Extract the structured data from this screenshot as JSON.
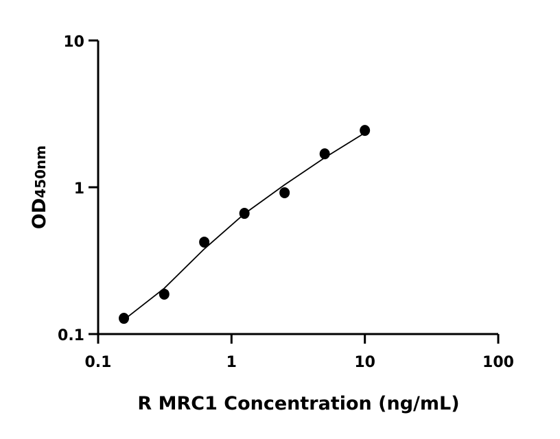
{
  "chart_data": {
    "type": "scatter",
    "title": "",
    "xlabel": "R MRC1 Concentration (ng/mL)",
    "ylabel_main": "OD",
    "ylabel_sub": "450nm",
    "x_scale": "log",
    "y_scale": "log",
    "xlim": [
      0.1,
      100
    ],
    "ylim": [
      0.1,
      10
    ],
    "x_ticks": [
      "0.1",
      "1",
      "10",
      "100"
    ],
    "y_ticks": [
      "0.1",
      "1",
      "10"
    ],
    "grid": false,
    "marker_color": "#000000",
    "series": [
      {
        "x": [
          0.156,
          0.313,
          0.625,
          1.25,
          2.5,
          5,
          10
        ],
        "y": [
          0.128,
          0.187,
          0.423,
          0.664,
          0.918,
          1.69,
          2.44
        ]
      }
    ],
    "fit_line": {
      "x": [
        0.156,
        0.313,
        0.625,
        1.25,
        2.5,
        5,
        10
      ],
      "y": [
        0.125,
        0.205,
        0.38,
        0.66,
        1.04,
        1.59,
        2.35
      ]
    }
  }
}
